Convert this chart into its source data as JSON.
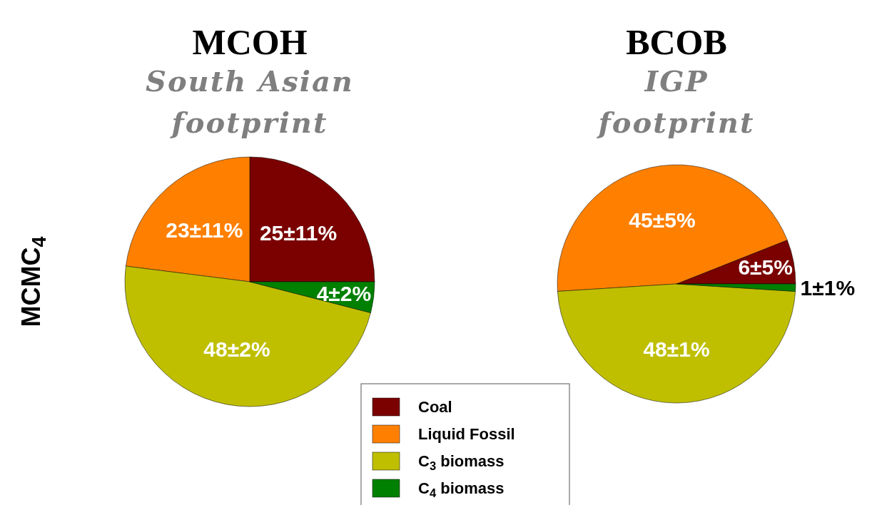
{
  "chart_data": [
    {
      "type": "pie",
      "title": "MCOH",
      "subtitle": "South Asian footprint",
      "ylabel": "MCMC$_{4}$",
      "categories": [
        "Coal",
        "Liquid Fossil",
        "C$_{3}$ biomass",
        "C$_{4}$ biomass"
      ],
      "values": [
        25,
        23,
        48,
        4
      ],
      "value_labels": [
        "25±11%",
        "23±11%",
        "48±2%",
        "4±2%"
      ],
      "colors": [
        "#7b0000",
        "#ff8000",
        "#bfbf00",
        "#008000"
      ],
      "legend": "bottom"
    },
    {
      "type": "pie",
      "title": "BCOB",
      "subtitle": "IGP footprint",
      "categories": [
        null,
        null,
        null,
        null
      ],
      "values": [
        6,
        45,
        48,
        1
      ],
      "value_labels": [
        "6±5%",
        "45±5%",
        "48±1%",
        "1±1%"
      ],
      "colors": [
        "#7b0000",
        "#ff8000",
        "#bfbf00",
        "#008000"
      ]
    }
  ]
}
